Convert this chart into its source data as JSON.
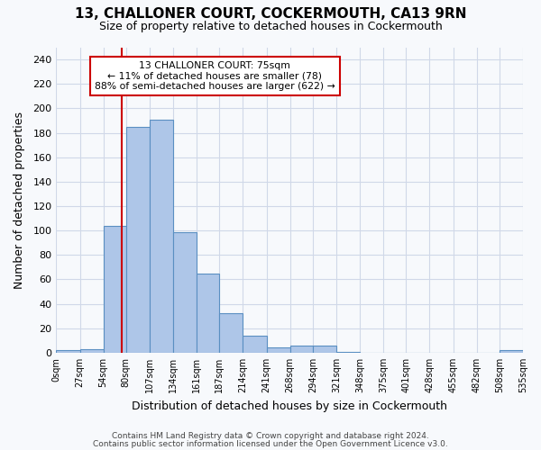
{
  "title": "13, CHALLONER COURT, COCKERMOUTH, CA13 9RN",
  "subtitle": "Size of property relative to detached houses in Cockermouth",
  "xlabel": "Distribution of detached houses by size in Cockermouth",
  "ylabel": "Number of detached properties",
  "footer_line1": "Contains HM Land Registry data © Crown copyright and database right 2024.",
  "footer_line2": "Contains public sector information licensed under the Open Government Licence v3.0.",
  "bin_labels": [
    "0sqm",
    "27sqm",
    "54sqm",
    "80sqm",
    "107sqm",
    "134sqm",
    "161sqm",
    "187sqm",
    "214sqm",
    "241sqm",
    "268sqm",
    "294sqm",
    "321sqm",
    "348sqm",
    "375sqm",
    "401sqm",
    "428sqm",
    "455sqm",
    "482sqm",
    "508sqm",
    "535sqm"
  ],
  "bar_values": [
    2,
    3,
    104,
    185,
    191,
    99,
    65,
    32,
    14,
    4,
    6,
    6,
    1,
    0,
    0,
    0,
    0,
    0,
    0,
    2,
    0
  ],
  "bin_edges": [
    0,
    27,
    54,
    80,
    107,
    134,
    161,
    187,
    214,
    241,
    268,
    294,
    321,
    348,
    375,
    401,
    428,
    455,
    482,
    508,
    535
  ],
  "bar_color": "#aec6e8",
  "bar_edge_color": "#5a8fc2",
  "grid_color": "#d0d8e8",
  "background_color": "#f7f9fc",
  "annotation_box_line1": "13 CHALLONER COURT: 75sqm",
  "annotation_box_line2": "← 11% of detached houses are smaller (78)",
  "annotation_box_line3": "88% of semi-detached houses are larger (622) →",
  "annotation_box_color": "#ffffff",
  "annotation_box_edge_color": "#cc0000",
  "vline_x": 75,
  "vline_color": "#cc0000",
  "ylim": [
    0,
    250
  ],
  "yticks": [
    0,
    20,
    40,
    60,
    80,
    100,
    120,
    140,
    160,
    180,
    200,
    220,
    240
  ]
}
